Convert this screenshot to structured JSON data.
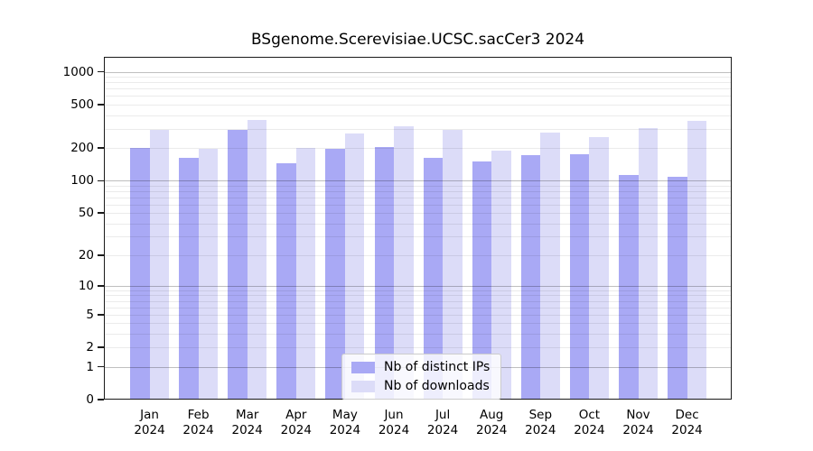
{
  "chart_data": {
    "type": "bar",
    "title": "BSgenome.Scerevisiae.UCSC.sacCer3 2024",
    "categories": [
      "Jan",
      "Feb",
      "Mar",
      "Apr",
      "May",
      "Jun",
      "Jul",
      "Aug",
      "Sep",
      "Oct",
      "Nov",
      "Dec"
    ],
    "category_year": "2024",
    "series": [
      {
        "name": "Nb of distinct IPs",
        "color": "#a9a9f5",
        "values": [
          200,
          161,
          295,
          144,
          196,
          204,
          161,
          151,
          171,
          175,
          112,
          108
        ]
      },
      {
        "name": "Nb of downloads",
        "color": "#dcdcf8",
        "values": [
          295,
          195,
          363,
          200,
          272,
          318,
          294,
          189,
          276,
          250,
          304,
          352
        ]
      }
    ],
    "yticks": [
      0,
      1,
      2,
      5,
      10,
      20,
      50,
      100,
      200,
      500,
      1000
    ],
    "yscale": "log1p",
    "ylim": [
      0,
      1372
    ],
    "xlabel": "",
    "ylabel": "",
    "grid": true,
    "legend_position": "bottom-center"
  }
}
